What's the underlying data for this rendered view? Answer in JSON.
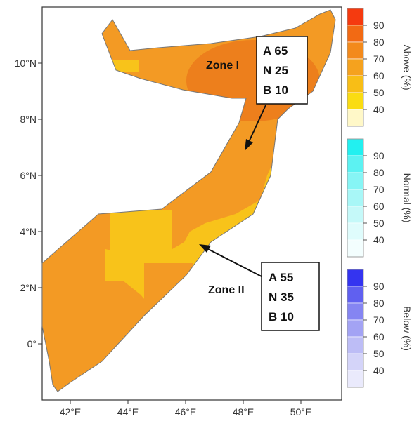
{
  "map": {
    "x_ticks": [
      "42°E",
      "44°E",
      "46°E",
      "48°E",
      "50°E"
    ],
    "y_ticks": [
      "10°N",
      "8°N",
      "6°N",
      "4°N",
      "2°N",
      "0°"
    ],
    "colors": {
      "land_base": "#F39A24",
      "land_dark": "#EB7A1B",
      "land_yellow": "#F8C31A",
      "ocean": "#FFFFFF",
      "border": "#777777"
    }
  },
  "zones": [
    {
      "label": "Zone I",
      "lines": [
        "A 65",
        "N 25",
        "B 10"
      ]
    },
    {
      "label": "Zone II",
      "lines": [
        "A 55",
        "N 35",
        "B 10"
      ]
    }
  ],
  "legends": [
    {
      "title": "Above (%)",
      "ticks": [
        "90",
        "80",
        "70",
        "60",
        "50",
        "40"
      ],
      "colors": [
        "#F53A0F",
        "#F26A14",
        "#F38A1C",
        "#F5A21E",
        "#F8BE16",
        "#FADC12",
        "#FFF8C8"
      ]
    },
    {
      "title": "Normal (%)",
      "ticks": [
        "90",
        "80",
        "70",
        "60",
        "50",
        "40"
      ],
      "colors": [
        "#22F0F0",
        "#5CF2F2",
        "#86F5F5",
        "#A8F7F7",
        "#C5F9F9",
        "#DFFCFC",
        "#F3FEFE"
      ]
    },
    {
      "title": "Below (%)",
      "ticks": [
        "90",
        "80",
        "70",
        "60",
        "50",
        "40"
      ],
      "colors": [
        "#3434F0",
        "#6060F0",
        "#8585F2",
        "#A3A3F4",
        "#BDBDF6",
        "#D4D4F9",
        "#EAEAFC"
      ]
    }
  ]
}
